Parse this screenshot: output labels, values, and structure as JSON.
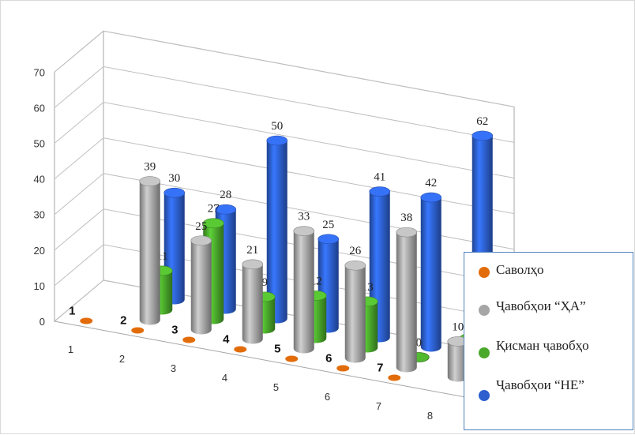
{
  "chart_data": {
    "type": "bar",
    "variant": "3d-cylinder",
    "title": "",
    "categories": [
      "1",
      "2",
      "3",
      "4",
      "5",
      "6",
      "7",
      "8"
    ],
    "ylim": [
      0,
      70
    ],
    "yticks": [
      0,
      10,
      20,
      30,
      40,
      50,
      60,
      70
    ],
    "grid": true,
    "legend_position": "bottom-right",
    "series": [
      {
        "name": "Саволҳо",
        "color": "#e36c0a",
        "values": [
          1,
          2,
          3,
          4,
          5,
          6,
          7,
          null
        ],
        "labels": [
          "1",
          "2",
          "3",
          "4",
          "5",
          "6",
          "7",
          ""
        ]
      },
      {
        "name": "Ҷавобҳои “ҲА”",
        "color": "#a6a6a6",
        "values": [
          null,
          39,
          25,
          21,
          33,
          26,
          38,
          10
        ],
        "labels": [
          "",
          "39",
          "25",
          "21",
          "33",
          "26",
          "38",
          "10"
        ]
      },
      {
        "name": "Қисман ҷавобҳо",
        "color": "#4aa82b",
        "values": [
          null,
          11,
          27,
          9,
          12,
          13,
          0,
          8
        ],
        "labels": [
          "",
          "11",
          "27",
          "9",
          "12",
          "13",
          "0",
          "8"
        ]
      },
      {
        "name": "Ҷавобҳои “НЕ”",
        "color": "#2d5fcf",
        "values": [
          null,
          30,
          28,
          50,
          25,
          41,
          42,
          62
        ],
        "labels": [
          "",
          "30",
          "28",
          "50",
          "25",
          "41",
          "42",
          "62"
        ]
      }
    ]
  }
}
